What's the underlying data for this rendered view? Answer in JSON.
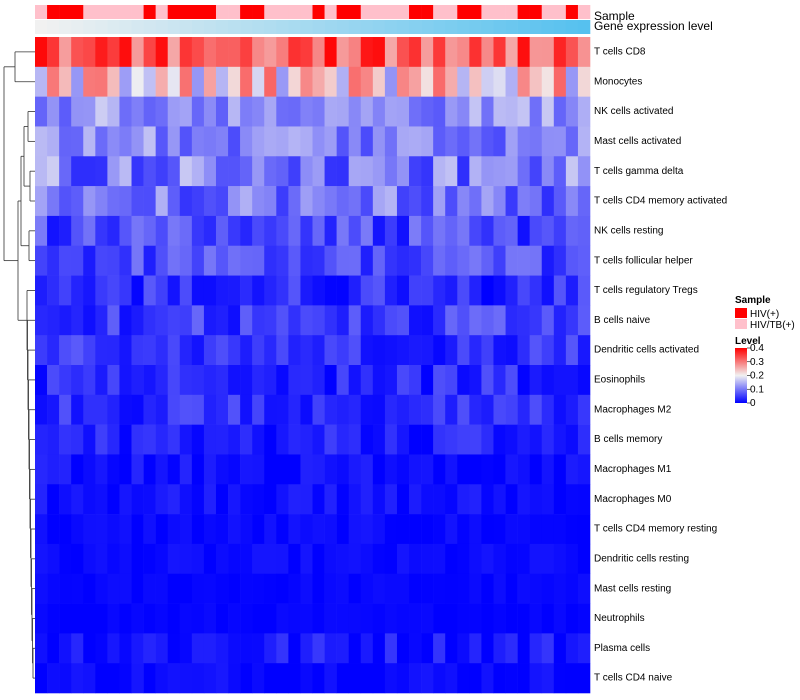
{
  "chart_data": {
    "type": "heatmap",
    "title": "",
    "annotation_tracks": [
      "Sample",
      "Gene expression level"
    ],
    "rows": [
      "T cells CD8",
      "Monocytes",
      "NK cells activated",
      "Mast cells activated",
      "T cells gamma delta",
      "T cells CD4 memory activated",
      "NK cells resting",
      "T cells follicular helper",
      "T cells regulatory  Tregs",
      "B cells naive",
      "Dendritic cells activated",
      "Eosinophils",
      "Macrophages M2",
      "B cells memory",
      "Macrophages M1",
      "Macrophages M0",
      "T cells CD4 memory resting",
      "Dendritic cells resting",
      "Mast cells resting",
      "Neutrophils",
      "Plasma cells",
      "T cells CD4 naive"
    ],
    "columns": 46,
    "sample_groups": [
      1,
      0,
      0,
      0,
      1,
      1,
      1,
      1,
      1,
      0,
      1,
      0,
      0,
      0,
      0,
      1,
      1,
      0,
      0,
      1,
      1,
      1,
      1,
      0,
      1,
      0,
      0,
      1,
      1,
      1,
      1,
      0,
      0,
      1,
      1,
      0,
      0,
      1,
      1,
      1,
      0,
      0,
      1,
      1,
      0,
      1
    ],
    "color_scale": {
      "min": 0,
      "max": 0.4,
      "low_color": "#0000ff",
      "mid_color": "#f1f1f1",
      "high_color": "#ff0000",
      "mid_value": 0.2
    },
    "expression_track_colors": [
      "#f1f1f1",
      "#56c1ef"
    ],
    "row_profiles": [
      {
        "base": 0.33,
        "spread": 0.07
      },
      {
        "base": 0.22,
        "spread": 0.1
      },
      {
        "base": 0.12,
        "spread": 0.05
      },
      {
        "base": 0.11,
        "spread": 0.05
      },
      {
        "base": 0.1,
        "spread": 0.07
      },
      {
        "base": 0.09,
        "spread": 0.06
      },
      {
        "base": 0.06,
        "spread": 0.05
      },
      {
        "base": 0.06,
        "spread": 0.04
      },
      {
        "base": 0.035,
        "spread": 0.04
      },
      {
        "base": 0.05,
        "spread": 0.04
      },
      {
        "base": 0.04,
        "spread": 0.035
      },
      {
        "base": 0.035,
        "spread": 0.035
      },
      {
        "base": 0.035,
        "spread": 0.035
      },
      {
        "base": 0.025,
        "spread": 0.03
      },
      {
        "base": 0.012,
        "spread": 0.02
      },
      {
        "base": 0.012,
        "spread": 0.02
      },
      {
        "base": 0.006,
        "spread": 0.012
      },
      {
        "base": 0.006,
        "spread": 0.012
      },
      {
        "base": 0.004,
        "spread": 0.008
      },
      {
        "base": 0.003,
        "spread": 0.006
      },
      {
        "base": 0.02,
        "spread": 0.03
      },
      {
        "base": 0.008,
        "spread": 0.015
      }
    ],
    "legend": {
      "sample_title": "Sample",
      "sample_entries": [
        {
          "label": "HIV(+)",
          "color": "#ff0000"
        },
        {
          "label": "HIV/TB(+)",
          "color": "#ffc0cb"
        }
      ],
      "level_title": "Level",
      "level_ticks": [
        "0.4",
        "0.3",
        "0.2",
        "0.1",
        "0"
      ],
      "placement": "right"
    }
  }
}
